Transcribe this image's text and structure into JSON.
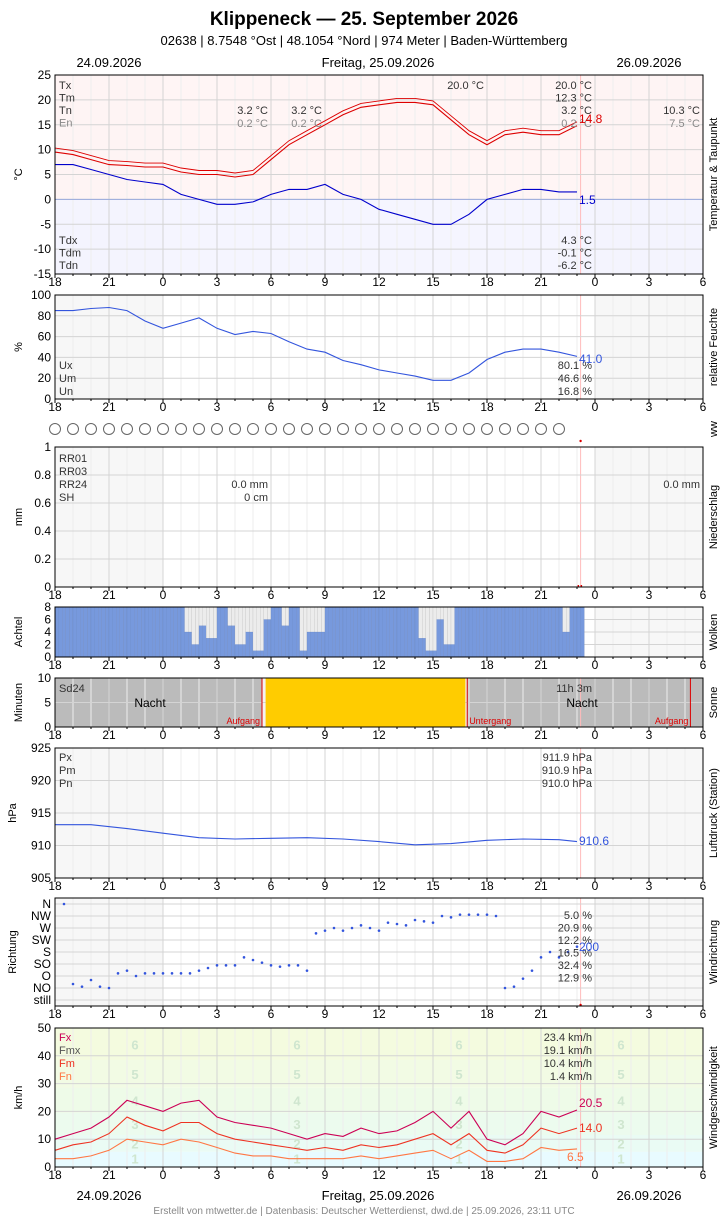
{
  "header": {
    "title": "Klippeneck  —  25. September 2026",
    "subtitle": "02638  |  8.7548 °Ost  |  48.1054 °Nord  |  974 Meter  |  Baden-Württemberg",
    "date_left": "24.09.2026",
    "date_center": "Freitag, 25.09.2026",
    "date_right": "26.09.2026"
  },
  "footer": {
    "date_left": "24.09.2026",
    "date_center": "Freitag, 25.09.2026",
    "date_right": "26.09.2026",
    "credit": "Erstellt von mtwetter.de | Datenbasis: Deutscher Wetterdienst, dwd.de | 25.09.2026, 23:11 UTC"
  },
  "x_axis": {
    "tick_labels": [
      "18",
      "21",
      "0",
      "3",
      "6",
      "9",
      "12",
      "15",
      "18",
      "21",
      "0",
      "3",
      "6"
    ],
    "range_hours": [
      -6,
      30
    ],
    "data_end_hour": 23.2
  },
  "colors": {
    "temperature": "#dd0000",
    "dewpoint": "#0000cc",
    "humidity": "#3355dd",
    "clouds": "#7799dd",
    "sun": "#ffcc00",
    "night": "#bbbbbb",
    "pressure": "#3355dd",
    "direction": "#3355dd",
    "gust": "#cc0055",
    "mean_wind": "#ee3322",
    "min_wind": "#ff7744"
  },
  "chart_data": [
    {
      "id": "temperature",
      "type": "line",
      "ylabel": "°C",
      "side_label": "Temperatur & Taupunkt",
      "ylim": [
        -15,
        25
      ],
      "yticks": [
        25,
        20,
        15,
        10,
        5,
        0,
        -5,
        -10,
        -15
      ],
      "grid": true,
      "legend_top": [
        "Tx",
        "Tm",
        "Tn",
        "En"
      ],
      "legend_bottom": [
        "Tdx",
        "Tdm",
        "Tdn"
      ],
      "annotations": {
        "prev_tn": "3.2 °C",
        "prev_en": "0.2 °C",
        "day_tn": "3.2 °C",
        "day_en": "0.2 °C",
        "next_tn": "10.3 °C",
        "next_en": "7.5 °C",
        "tx_mid": "20.0 °C",
        "tx": "20.0 °C",
        "tm": "12.3 °C",
        "tn": "3.2 °C",
        "en": "0.2 °C",
        "tdx": "4.3 °C",
        "tdm": "-0.1 °C",
        "tdn": "-6.2 °C",
        "current_t": "14.8",
        "current_td": "1.5"
      },
      "series": [
        {
          "key": "temperature",
          "x": [
            -6,
            -5,
            -4,
            -3,
            -2,
            -1,
            0,
            1,
            2,
            3,
            4,
            5,
            6,
            7,
            8,
            9,
            10,
            11,
            12,
            13,
            14,
            15,
            16,
            17,
            18,
            19,
            20,
            21,
            22,
            23
          ],
          "values": [
            9.5,
            9,
            8,
            7,
            6.8,
            6.5,
            6.5,
            5.5,
            5,
            5,
            4.5,
            5,
            8,
            11,
            13,
            15,
            17,
            18.5,
            19,
            19.5,
            19.5,
            19,
            16,
            13,
            11,
            13,
            13.5,
            13,
            13,
            14.8
          ]
        },
        {
          "key": "dewpoint",
          "x": [
            -6,
            -5,
            -4,
            -3,
            -2,
            -1,
            0,
            1,
            2,
            3,
            4,
            5,
            6,
            7,
            8,
            9,
            10,
            11,
            12,
            13,
            14,
            15,
            16,
            17,
            18,
            19,
            20,
            21,
            22,
            23
          ],
          "values": [
            7,
            7,
            6,
            5,
            4,
            3.5,
            3,
            1,
            0,
            -1,
            -1,
            -0.5,
            1,
            2,
            2,
            3,
            1,
            0,
            -2,
            -3,
            -4,
            -5,
            -5,
            -3,
            0,
            1,
            2,
            2,
            1.5,
            1.5
          ]
        }
      ]
    },
    {
      "id": "humidity",
      "type": "line",
      "ylabel": "%",
      "side_label": "relative Feuchte",
      "ylim": [
        0,
        100
      ],
      "yticks": [
        100,
        80,
        60,
        40,
        20,
        0
      ],
      "legend": [
        "Ux",
        "Um",
        "Un"
      ],
      "annotations": {
        "ux": "80.1 %",
        "um": "46.6 %",
        "un": "16.8 %",
        "current": "41.0"
      },
      "series": [
        {
          "key": "humidity",
          "x": [
            -6,
            -5,
            -4,
            -3,
            -2,
            -1,
            0,
            1,
            2,
            3,
            4,
            5,
            6,
            7,
            8,
            9,
            10,
            11,
            12,
            13,
            14,
            15,
            16,
            17,
            18,
            19,
            20,
            21,
            22,
            23
          ],
          "values": [
            85,
            85,
            87,
            88,
            85,
            75,
            68,
            73,
            78,
            68,
            62,
            65,
            63,
            55,
            48,
            45,
            37,
            33,
            28,
            25,
            22,
            18,
            18,
            25,
            38,
            45,
            48,
            48,
            45,
            41
          ]
        }
      ]
    },
    {
      "id": "weather",
      "type": "table",
      "side_label": "ww",
      "symbol_count": 29
    },
    {
      "id": "precipitation",
      "type": "bar",
      "ylabel": "mm",
      "side_label": "Niederschlag",
      "ylim": [
        0,
        1
      ],
      "yticks": [
        1.0,
        0.8,
        0.6,
        0.4,
        0.2,
        0.0
      ],
      "legend": [
        "RR01",
        "RR03",
        "RR24",
        "SH"
      ],
      "annotations": {
        "rr24": "0.0 mm",
        "sh": "0 cm",
        "next_rr24": "0.0 mm"
      },
      "values": []
    },
    {
      "id": "clouds",
      "type": "bar",
      "ylabel": "Achtel",
      "side_label": "Wolken",
      "ylim": [
        0,
        8
      ],
      "yticks": [
        8,
        6,
        4,
        2,
        0
      ],
      "x": [
        -6,
        -4,
        -2,
        0,
        0.8,
        1.2,
        1.6,
        2,
        2.4,
        3,
        3.5,
        4,
        4.5,
        5,
        5.5,
        6,
        6.5,
        7,
        7.5,
        8,
        9,
        11,
        13,
        14,
        14.5,
        15,
        15.5,
        16,
        18,
        20,
        21.2,
        22,
        22.5,
        23
      ],
      "values": [
        8,
        8,
        8,
        8,
        8,
        4,
        2,
        5,
        3,
        8,
        5,
        2,
        4,
        1,
        6,
        8,
        5,
        8,
        1,
        4,
        8,
        8,
        8,
        3,
        1,
        6,
        2,
        8,
        8,
        8,
        8,
        4,
        8,
        8
      ]
    },
    {
      "id": "sun",
      "type": "bar",
      "ylabel": "Minuten",
      "side_label": "Sonne",
      "ylim": [
        0,
        10
      ],
      "yticks": [
        10,
        5,
        0
      ],
      "legend": [
        "Sd24"
      ],
      "labels": {
        "night": "Nacht",
        "sunrise": "Aufgang",
        "sunset": "Untergang",
        "duration": "11h 3m"
      },
      "sun_from_hour": 5.5,
      "sun_to_hour": 16.9,
      "sun_minutes": 10
    },
    {
      "id": "pressure",
      "type": "line",
      "ylabel": "hPa",
      "side_label": "Luftdruck (Station)",
      "ylim": [
        905,
        925
      ],
      "yticks": [
        925,
        920,
        915,
        910,
        905
      ],
      "legend": [
        "Px",
        "Pm",
        "Pn"
      ],
      "annotations": {
        "px": "911.9 hPa",
        "pm": "910.9 hPa",
        "pn": "910.0 hPa",
        "current": "910.6"
      },
      "series": [
        {
          "key": "pressure",
          "x": [
            -6,
            -4,
            -2,
            0,
            2,
            4,
            6,
            8,
            10,
            12,
            14,
            16,
            18,
            20,
            22,
            23
          ],
          "values": [
            913.2,
            913.2,
            912.6,
            911.9,
            911.2,
            911,
            911.1,
            911.2,
            911,
            910.6,
            910.1,
            910.3,
            910.8,
            911,
            910.9,
            910.6
          ]
        }
      ]
    },
    {
      "id": "direction",
      "type": "scatter",
      "ylabel": "Richtung",
      "side_label": "Windrichtung",
      "categories": [
        "N",
        "NW",
        "W",
        "SW",
        "S",
        "SO",
        "O",
        "NO",
        "still"
      ],
      "annotations": {
        "n": "5.0 %",
        "nw": "20.9 %",
        "w": "12.2 %",
        "sw": "16.5 %",
        "s": "32.4 %",
        "so": "12.9 %",
        "current": "200"
      },
      "x": [
        -5.5,
        -5,
        -4.5,
        -4,
        -3.5,
        -3,
        -2.5,
        -2,
        -1.5,
        -1,
        -0.5,
        0,
        0.5,
        1,
        1.5,
        2,
        2.5,
        3,
        3.5,
        4,
        4.5,
        5,
        5.5,
        6,
        6.5,
        7,
        7.5,
        8,
        8.5,
        9,
        9.5,
        10,
        10.5,
        11,
        11.5,
        12,
        12.5,
        13,
        13.5,
        14,
        14.5,
        15,
        15.5,
        16,
        16.5,
        17,
        17.5,
        18,
        18.5,
        19,
        19.5,
        20,
        20.5,
        21,
        21.5,
        22,
        22.5,
        23
      ],
      "values": [
        0,
        60,
        50,
        75,
        50,
        45,
        100,
        110,
        90,
        100,
        100,
        100,
        100,
        100,
        100,
        110,
        120,
        130,
        130,
        130,
        160,
        150,
        140,
        130,
        125,
        130,
        130,
        110,
        250,
        260,
        270,
        260,
        270,
        280,
        270,
        260,
        290,
        285,
        280,
        300,
        295,
        290,
        315,
        310,
        320,
        320,
        320,
        320,
        315,
        45,
        50,
        80,
        110,
        160,
        180,
        160,
        180,
        200
      ]
    },
    {
      "id": "wind_speed",
      "type": "line",
      "ylabel": "km/h",
      "side_label": "Windgeschwindigkeit",
      "ylim": [
        0,
        50
      ],
      "yticks": [
        50,
        40,
        30,
        20,
        10,
        0
      ],
      "legend": [
        "Fx",
        "Fmx",
        "Fm",
        "Fn"
      ],
      "annotations": {
        "fx": "23.4 km/h",
        "fmx": "19.1 km/h",
        "fm": "10.4 km/h",
        "fn": "1.4 km/h",
        "current_fx": "20.5",
        "current_fm": "14.0",
        "current_fn": "6.5"
      },
      "beaufort": [
        "1",
        "2",
        "3",
        "4",
        "5",
        "6"
      ],
      "series": [
        {
          "key": "gust",
          "x": [
            -6,
            -5,
            -4,
            -3,
            -2,
            -1,
            0,
            1,
            2,
            3,
            4,
            5,
            6,
            7,
            8,
            9,
            10,
            11,
            12,
            13,
            14,
            15,
            16,
            17,
            18,
            19,
            20,
            21,
            22,
            23
          ],
          "values": [
            10,
            12,
            14,
            18,
            24,
            22,
            20,
            23,
            24,
            18,
            16,
            15,
            14,
            12,
            10,
            12,
            11,
            14,
            12,
            13,
            16,
            20,
            14,
            20,
            10,
            8,
            12,
            20,
            18,
            20.5
          ]
        },
        {
          "key": "mean_wind",
          "x": [
            -6,
            -5,
            -4,
            -3,
            -2,
            -1,
            0,
            1,
            2,
            3,
            4,
            5,
            6,
            7,
            8,
            9,
            10,
            11,
            12,
            13,
            14,
            15,
            16,
            17,
            18,
            19,
            20,
            21,
            22,
            23
          ],
          "values": [
            6,
            8,
            9,
            12,
            18,
            15,
            13,
            16,
            16,
            12,
            10,
            9,
            8,
            7,
            6,
            7,
            6,
            8,
            7,
            8,
            10,
            12,
            8,
            12,
            6,
            5,
            8,
            14,
            12,
            14
          ]
        },
        {
          "key": "min_wind",
          "x": [
            -6,
            -5,
            -4,
            -3,
            -2,
            -1,
            0,
            1,
            2,
            3,
            4,
            5,
            6,
            7,
            8,
            9,
            10,
            11,
            12,
            13,
            14,
            15,
            16,
            17,
            18,
            19,
            20,
            21,
            22,
            23
          ],
          "values": [
            3,
            3,
            4,
            6,
            10,
            9,
            8,
            10,
            9,
            7,
            5,
            4,
            4,
            3,
            3,
            3,
            3,
            4,
            3,
            4,
            5,
            6,
            3,
            6,
            2,
            2,
            3,
            7,
            6,
            6.5
          ]
        }
      ]
    }
  ]
}
